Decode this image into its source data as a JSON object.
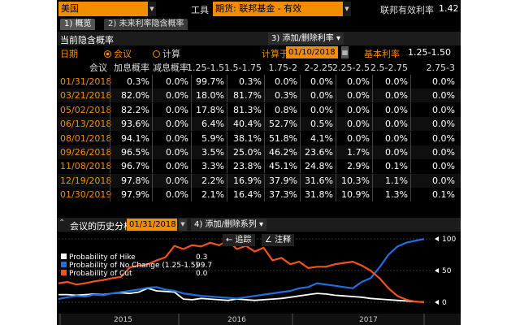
{
  "topbar": {
    "country": "美国",
    "instrument_label": "工具",
    "instrument": "期货: 联邦基金 - 有效",
    "rate_label": "联邦有效利率",
    "rate_value": "1.42"
  },
  "tabs": [
    {
      "label": "1) 概览"
    },
    {
      "label": "2) 未来利率隐含概率"
    }
  ],
  "section": {
    "title": "当前隐含概率",
    "add_remove_button": "3) 添加/删除利率 ▾"
  },
  "controls": {
    "date_label": "日期",
    "meeting_option": "会议",
    "calc_option": "计算",
    "calc_date_label": "计算于",
    "calc_date": "01/10/2018",
    "base_rate_label": "基本利率",
    "base_rate": "1.25-1.50"
  },
  "table": {
    "headers": [
      "会议",
      "加息概率",
      "减息概率",
      "1.25-1.5",
      "1.5-1.75",
      "1.75-2",
      "2-2.25",
      "2.25-2.5",
      "2.5-2.75",
      "2.75-3"
    ],
    "rows": [
      [
        "01/31/2018",
        "0.3%",
        "0.0%",
        "99.7%",
        "0.3%",
        "0.0%",
        "0.0%",
        "0.0%",
        "0.0%",
        "0.0%"
      ],
      [
        "03/21/2018",
        "82.0%",
        "0.0%",
        "18.0%",
        "81.7%",
        "0.3%",
        "0.0%",
        "0.0%",
        "0.0%",
        "0.0%"
      ],
      [
        "05/02/2018",
        "82.2%",
        "0.0%",
        "17.8%",
        "81.3%",
        "0.8%",
        "0.0%",
        "0.0%",
        "0.0%",
        "0.0%"
      ],
      [
        "06/13/2018",
        "93.6%",
        "0.0%",
        "6.4%",
        "40.4%",
        "52.7%",
        "0.5%",
        "0.0%",
        "0.0%",
        "0.0%"
      ],
      [
        "08/01/2018",
        "94.1%",
        "0.0%",
        "5.9%",
        "38.1%",
        "51.8%",
        "4.1%",
        "0.0%",
        "0.0%",
        "0.0%"
      ],
      [
        "09/26/2018",
        "96.5%",
        "0.0%",
        "3.5%",
        "25.0%",
        "46.2%",
        "23.6%",
        "1.7%",
        "0.0%",
        "0.0%"
      ],
      [
        "11/08/2018",
        "96.7%",
        "0.0%",
        "3.3%",
        "23.8%",
        "45.1%",
        "24.8%",
        "2.9%",
        "0.1%",
        "0.0%"
      ],
      [
        "12/19/2018",
        "97.8%",
        "0.0%",
        "2.2%",
        "16.9%",
        "37.9%",
        "31.6%",
        "10.3%",
        "1.1%",
        "0.0%"
      ],
      [
        "01/30/2019",
        "97.9%",
        "0.0%",
        "2.1%",
        "16.4%",
        "37.3%",
        "31.8%",
        "10.9%",
        "1.3%",
        "0.1%"
      ]
    ]
  },
  "history": {
    "title": "会议的历史分析",
    "date": "01/31/2018",
    "add_series_button": "4) 添加/删除系列 ▾",
    "track_button": "← 追踪",
    "annotate_button": "∠ 注释"
  },
  "chart_data": {
    "type": "line",
    "series": [
      {
        "name": "Probability of Hike",
        "last": "0.3",
        "color": "#ffffff",
        "values": [
          12,
          12,
          11,
          12,
          13,
          12,
          14,
          15,
          14,
          16,
          22,
          18,
          17,
          16,
          5,
          4,
          6,
          5,
          4,
          3,
          5,
          4,
          3,
          4,
          5,
          6,
          8,
          10,
          12,
          14,
          13,
          11,
          10,
          9,
          8,
          6,
          5,
          4,
          3,
          2,
          1,
          0.3
        ]
      },
      {
        "name": "Probability of No Change (1.25-1.5)",
        "last": "99.7",
        "color": "#1f6fe0",
        "values": [
          5,
          8,
          10,
          9,
          12,
          11,
          14,
          16,
          18,
          20,
          23,
          24,
          20,
          18,
          14,
          12,
          10,
          9,
          8,
          7,
          6,
          8,
          10,
          12,
          14,
          16,
          18,
          22,
          24,
          30,
          28,
          26,
          24,
          22,
          32,
          38,
          55,
          75,
          88,
          94,
          97,
          99.7
        ]
      },
      {
        "name": "Probability of Cut",
        "last": "0.0",
        "color": "#f0531c",
        "values": [
          30,
          32,
          28,
          30,
          33,
          35,
          38,
          40,
          55,
          58,
          60,
          62,
          75,
          85,
          88,
          86,
          92,
          90,
          94,
          93,
          88,
          85,
          84,
          82,
          70,
          66,
          64,
          60,
          58,
          52,
          56,
          60,
          62,
          64,
          58,
          50,
          38,
          22,
          10,
          4,
          1,
          0.0
        ]
      }
    ],
    "x_ticks": [
      "2015",
      "2016",
      "2017"
    ],
    "y_ticks": [
      0,
      50,
      100
    ],
    "ylim": [
      0,
      100
    ],
    "legend_position": "top-left"
  }
}
